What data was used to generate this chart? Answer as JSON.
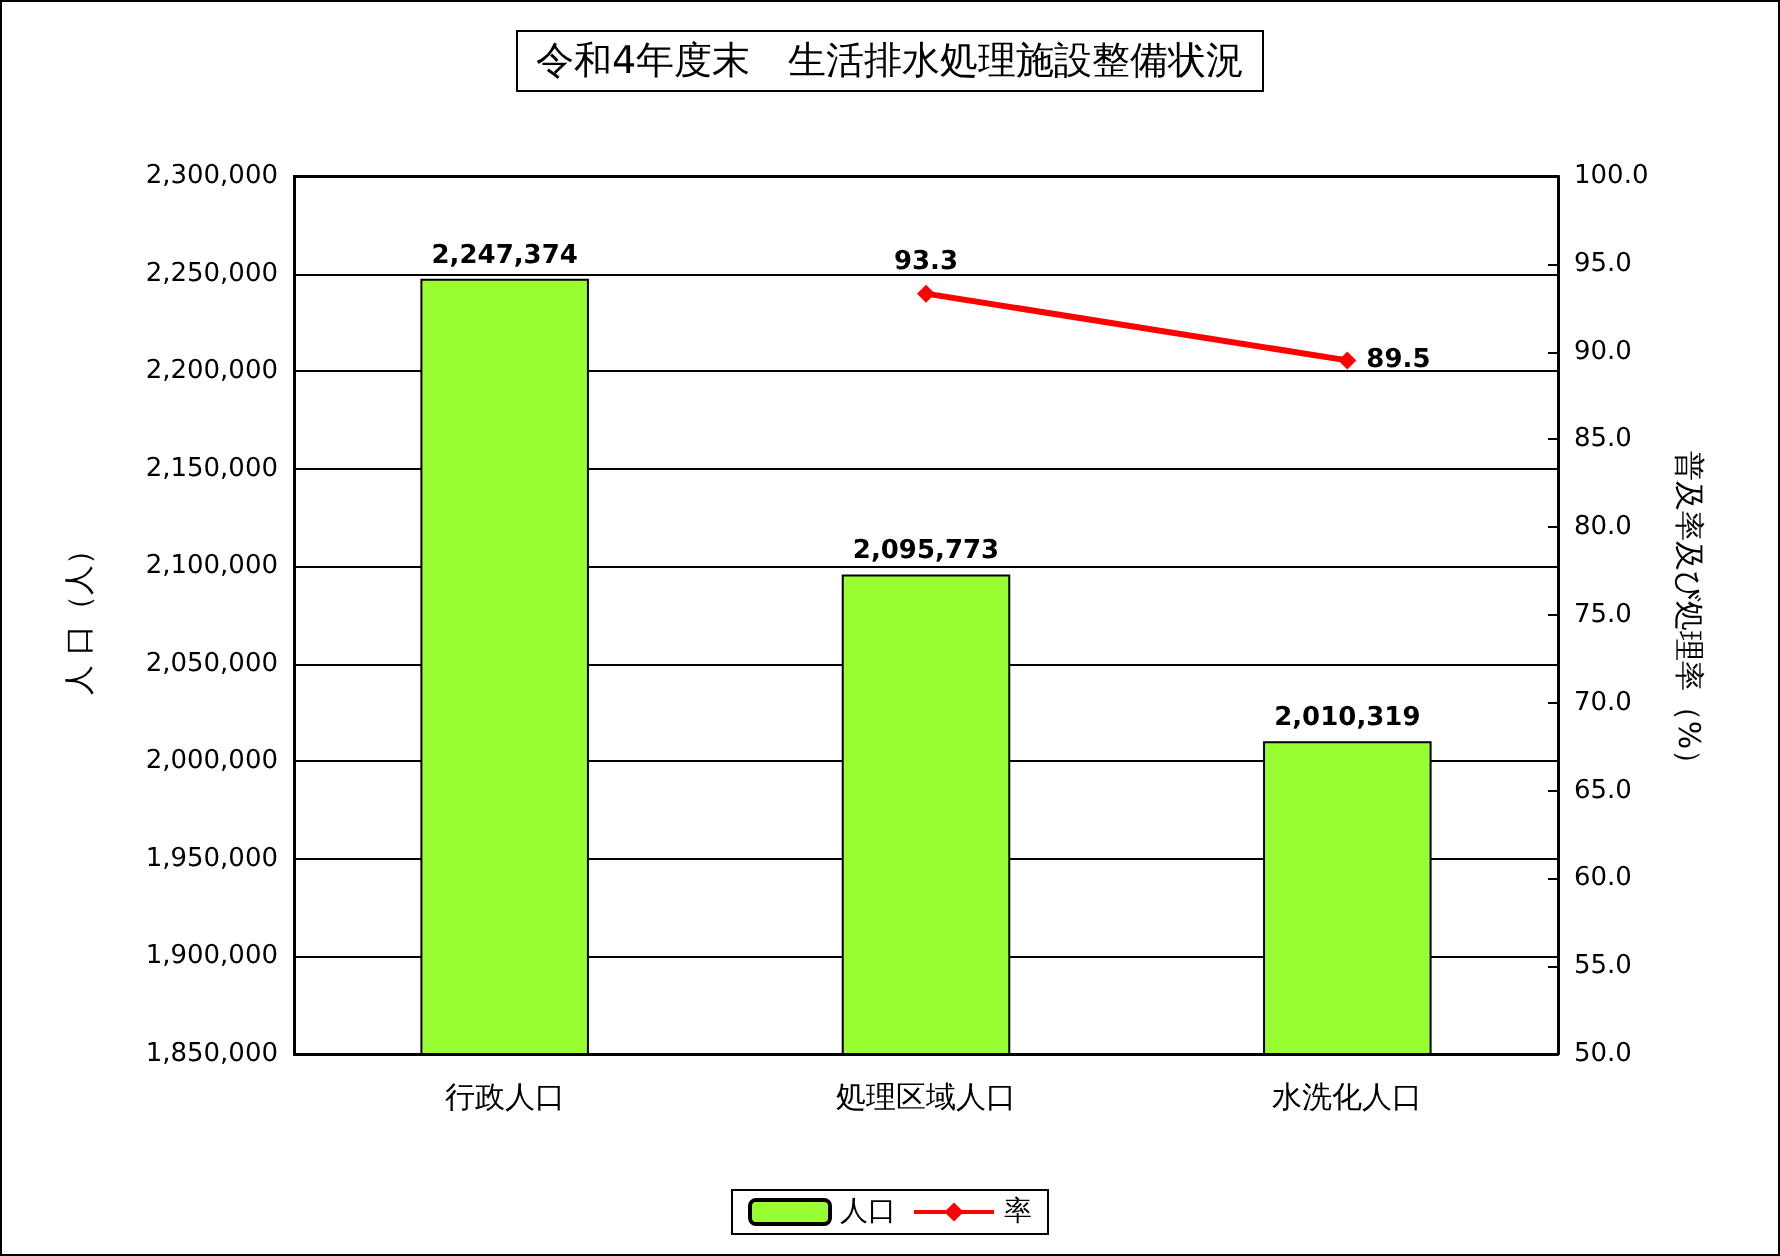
{
  "chart_data": {
    "type": "bar",
    "title": "令和4年度末　生活排水処理施設整備状況",
    "ylabel": "人 口（人）",
    "y2label": "普及率及び処理率（%）",
    "categories": [
      "行政人口",
      "処理区域人口",
      "水洗化人口"
    ],
    "series": [
      {
        "name": "人口",
        "color": "#99ff33",
        "values": [
          2247374,
          2095773,
          2010319
        ],
        "value_labels": [
          "2,247,374",
          "2,095,773",
          "2,010,319"
        ]
      },
      {
        "name": "率",
        "type": "line",
        "axis": "y2",
        "color": "#ff0000",
        "marker": "diamond",
        "values": [
          null,
          93.3,
          89.5
        ]
      }
    ],
    "ylim": [
      1850000,
      2300000
    ],
    "yticks": [
      {
        "value": 1850000,
        "label": "1,850,000"
      },
      {
        "value": 1900000,
        "label": "1,900,000"
      },
      {
        "value": 1950000,
        "label": "1,950,000"
      },
      {
        "value": 2000000,
        "label": "2,000,000"
      },
      {
        "value": 2050000,
        "label": "2,050,000"
      },
      {
        "value": 2100000,
        "label": "2,100,000"
      },
      {
        "value": 2150000,
        "label": "2,150,000"
      },
      {
        "value": 2200000,
        "label": "2,200,000"
      },
      {
        "value": 2250000,
        "label": "2,250,000"
      },
      {
        "value": 2300000,
        "label": "2,300,000"
      }
    ],
    "y2lim": [
      50,
      100
    ],
    "y2ticks": [
      {
        "value": 50,
        "label": "50.0"
      },
      {
        "value": 55,
        "label": "55.0"
      },
      {
        "value": 60,
        "label": "60.0"
      },
      {
        "value": 65,
        "label": "65.0"
      },
      {
        "value": 70,
        "label": "70.0"
      },
      {
        "value": 75,
        "label": "75.0"
      },
      {
        "value": 80,
        "label": "80.0"
      },
      {
        "value": 85,
        "label": "85.0"
      },
      {
        "value": 90,
        "label": "90.0"
      },
      {
        "value": 95,
        "label": "95.0"
      },
      {
        "value": 100,
        "label": "100.0"
      }
    ],
    "grid": "y",
    "legend": "bottom",
    "data_labels": true
  }
}
